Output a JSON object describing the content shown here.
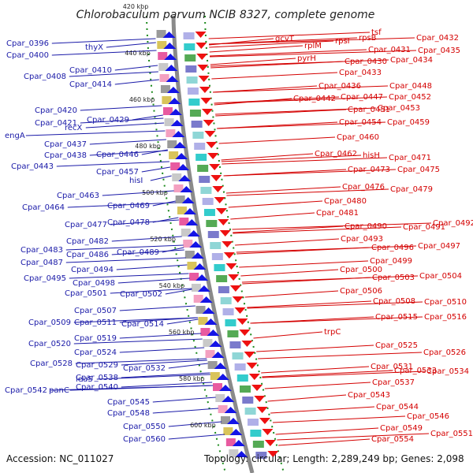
{
  "title": "Chlorobaculum parvum NCIB 8327, complete genome",
  "accession": "Accession: NC_011027",
  "topology": "Topology: circular; Length: 2,289,249 bp; Genes: 2,098",
  "colors": {
    "left_label": "#1a1aa8",
    "right_label": "#d40000",
    "minus_arrow": "#1414e6",
    "plus_arrow": "#ee1111",
    "dotted_track": "#1c8a1c",
    "backbone": "#8a8a8a"
  },
  "kbp_ticks": [
    "420 kbp",
    "440 kbp",
    "460 kbp",
    "480 kbp",
    "500 kbp",
    "520 kbp",
    "540 kbp",
    "560 kbp",
    "580 kbp",
    "600 kbp"
  ],
  "left_labels": [
    "Cpar_0396",
    "Cpar_0400",
    "thyX",
    "Cpar_0408",
    "Cpar_0410",
    "Cpar_0414",
    "Cpar_0420",
    "Cpar_0421",
    "engA",
    "recX",
    "Cpar_0429",
    "Cpar_0437",
    "Cpar_0438",
    "Cpar_0443",
    "Cpar_0446",
    "Cpar_0457",
    "hisI",
    "Cpar_0463",
    "Cpar_0464",
    "Cpar_0469",
    "Cpar_0478",
    "Cpar_0477",
    "Cpar_0482",
    "Cpar_0483",
    "Cpar_0486",
    "Cpar_0489",
    "Cpar_0487",
    "Cpar_0494",
    "Cpar_0495",
    "Cpar_0498",
    "Cpar_0501",
    "Cpar_0502",
    "Cpar_0507",
    "Cpar_0509",
    "Cpar_0511",
    "Cpar_0514",
    "Cpar_0519",
    "Cpar_0520",
    "Cpar_0524",
    "Cpar_0528",
    "Cpar_0529",
    "Cpar_0532",
    "Cpar_0538",
    "leuS",
    "Cpar_0540",
    "Cpar_0542",
    "panC",
    "Cpar_0545",
    "Cpar_0548",
    "Cpar_0550",
    "Cpar_0560"
  ],
  "right_labels": [
    "tsf",
    "gcvT",
    "rplM",
    "rpsI",
    "rpsB",
    "Cpar_0432",
    "Cpar_0431",
    "Cpar_0435",
    "pyrH",
    "Cpar_0430",
    "Cpar_0434",
    "Cpar_0433",
    "Cpar_0436",
    "Cpar_0448",
    "Cpar_0442",
    "Cpar_0447",
    "Cpar_0452",
    "Cpar_0451",
    "Cpar_0453",
    "Cpar_0454",
    "Cpar_0459",
    "Cpar_0460",
    "Cpar_0462",
    "hisH",
    "Cpar_0471",
    "Cpar_0473",
    "Cpar_0475",
    "Cpar_0476",
    "Cpar_0479",
    "Cpar_0480",
    "Cpar_0481",
    "Cpar_0490",
    "Cpar_0491",
    "Cpar_0492",
    "Cpar_0493",
    "Cpar_0496",
    "Cpar_0497",
    "Cpar_0499",
    "Cpar_0500",
    "Cpar_0503",
    "Cpar_0504",
    "Cpar_0506",
    "Cpar_0508",
    "Cpar_0510",
    "Cpar_0515",
    "Cpar_0516",
    "trpC",
    "Cpar_0525",
    "Cpar_0526",
    "Cpar_0531",
    "Cpar_0533",
    "Cpar_0534",
    "Cpar_0537",
    "Cpar_0543",
    "Cpar_0544",
    "Cpar_0546",
    "Cpar_0549",
    "Cpar_0551",
    "Cpar_0554"
  ]
}
